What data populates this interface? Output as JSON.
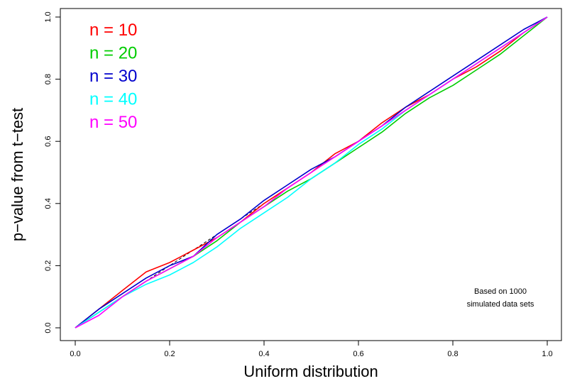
{
  "chart_data": {
    "type": "line",
    "xlabel": "Uniform distribution",
    "ylabel": "p−value from t−test",
    "xlim": [
      0,
      1
    ],
    "ylim": [
      0,
      1
    ],
    "x_ticks": [
      "0.0",
      "0.2",
      "0.4",
      "0.6",
      "0.8",
      "1.0"
    ],
    "y_ticks": [
      "0.0",
      "0.2",
      "0.4",
      "0.6",
      "0.8",
      "1.0"
    ],
    "grid": false,
    "legend_position": "top-left",
    "reference_line": {
      "x": [
        0,
        1
      ],
      "y": [
        0,
        1
      ],
      "style": "dashed",
      "color": "#000000"
    },
    "annotation": [
      "Based on 1000",
      "simulated data sets"
    ],
    "series": [
      {
        "name": "n = 10",
        "color": "#ff0000",
        "x": [
          0,
          0.05,
          0.1,
          0.15,
          0.2,
          0.25,
          0.3,
          0.35,
          0.4,
          0.45,
          0.5,
          0.55,
          0.6,
          0.65,
          0.7,
          0.75,
          0.8,
          0.85,
          0.9,
          0.95,
          1
        ],
        "y": [
          0,
          0.06,
          0.12,
          0.18,
          0.21,
          0.25,
          0.29,
          0.34,
          0.4,
          0.45,
          0.5,
          0.56,
          0.6,
          0.66,
          0.71,
          0.75,
          0.8,
          0.84,
          0.89,
          0.95,
          1
        ]
      },
      {
        "name": "n = 20",
        "color": "#00cc00",
        "x": [
          0,
          0.05,
          0.1,
          0.15,
          0.2,
          0.25,
          0.3,
          0.35,
          0.4,
          0.45,
          0.5,
          0.55,
          0.6,
          0.65,
          0.7,
          0.75,
          0.8,
          0.85,
          0.9,
          0.95,
          1
        ],
        "y": [
          0,
          0.05,
          0.1,
          0.15,
          0.19,
          0.23,
          0.28,
          0.34,
          0.39,
          0.44,
          0.48,
          0.53,
          0.58,
          0.63,
          0.69,
          0.74,
          0.78,
          0.83,
          0.88,
          0.94,
          1
        ]
      },
      {
        "name": "n = 30",
        "color": "#0000cc",
        "x": [
          0,
          0.05,
          0.1,
          0.15,
          0.2,
          0.25,
          0.3,
          0.35,
          0.4,
          0.45,
          0.5,
          0.55,
          0.6,
          0.65,
          0.7,
          0.75,
          0.8,
          0.85,
          0.9,
          0.95,
          1
        ],
        "y": [
          0,
          0.06,
          0.11,
          0.16,
          0.2,
          0.23,
          0.3,
          0.35,
          0.41,
          0.46,
          0.51,
          0.55,
          0.6,
          0.65,
          0.71,
          0.76,
          0.81,
          0.86,
          0.91,
          0.96,
          1
        ]
      },
      {
        "name": "n = 40",
        "color": "#00ffff",
        "x": [
          0,
          0.05,
          0.1,
          0.15,
          0.2,
          0.25,
          0.3,
          0.35,
          0.4,
          0.45,
          0.5,
          0.55,
          0.6,
          0.65,
          0.7,
          0.75,
          0.8,
          0.85,
          0.9,
          0.95,
          1
        ],
        "y": [
          0,
          0.05,
          0.1,
          0.14,
          0.17,
          0.21,
          0.26,
          0.32,
          0.37,
          0.42,
          0.48,
          0.53,
          0.59,
          0.64,
          0.7,
          0.75,
          0.8,
          0.85,
          0.9,
          0.95,
          1
        ]
      },
      {
        "name": "n = 50",
        "color": "#ff00ff",
        "x": [
          0,
          0.05,
          0.1,
          0.15,
          0.2,
          0.25,
          0.3,
          0.35,
          0.4,
          0.45,
          0.5,
          0.55,
          0.6,
          0.65,
          0.7,
          0.75,
          0.8,
          0.85,
          0.9,
          0.95,
          1
        ],
        "y": [
          0,
          0.04,
          0.1,
          0.15,
          0.19,
          0.23,
          0.29,
          0.34,
          0.39,
          0.45,
          0.5,
          0.55,
          0.6,
          0.65,
          0.7,
          0.75,
          0.8,
          0.85,
          0.9,
          0.95,
          1
        ]
      }
    ]
  }
}
